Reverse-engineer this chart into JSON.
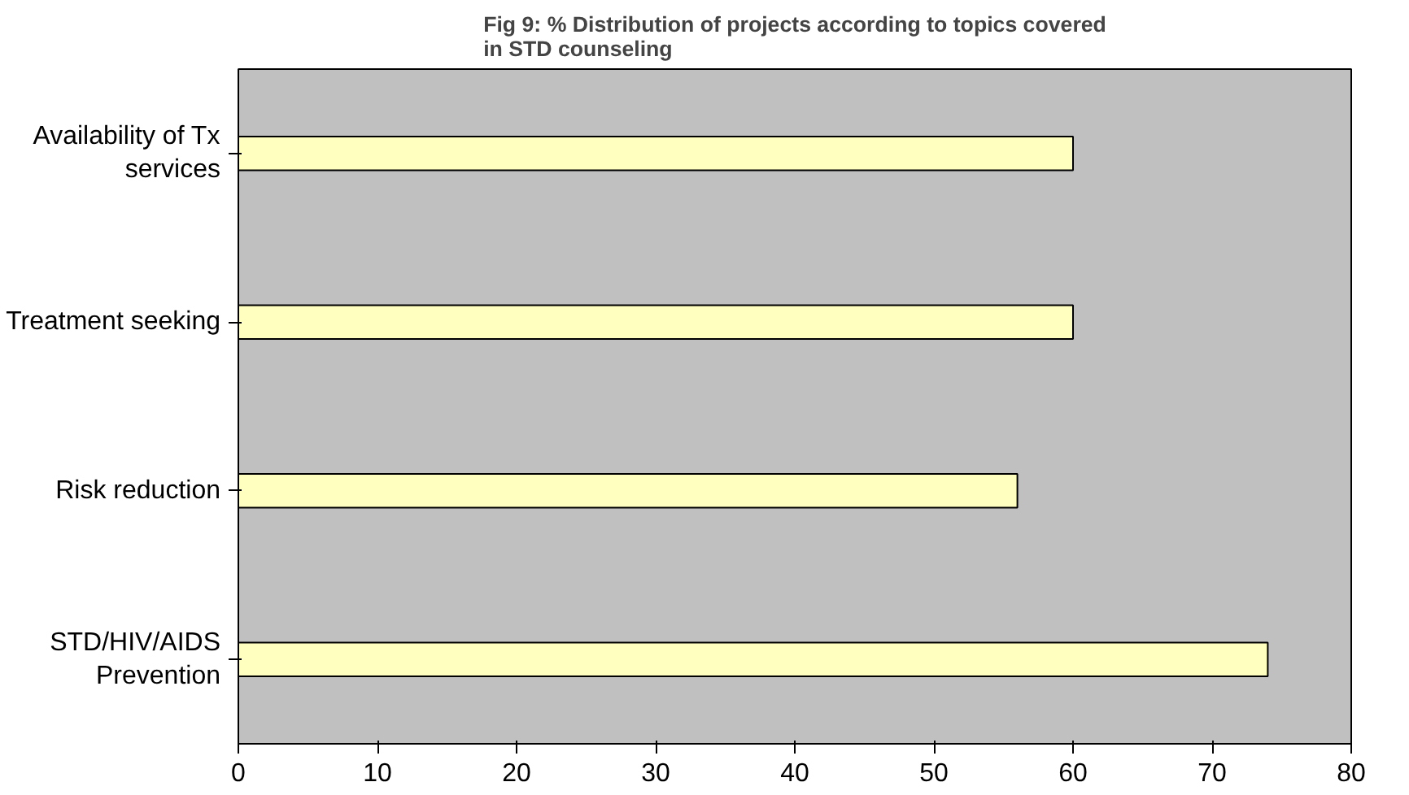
{
  "chart_data": {
    "type": "bar",
    "orientation": "horizontal",
    "title": "Fig 9: % Distribution of projects according to topics covered in STD counseling",
    "categories": [
      "Availability of Tx services",
      "Treatment seeking",
      "Risk reduction",
      "STD/HIV/AIDS Prevention"
    ],
    "values": [
      60,
      60,
      56,
      74
    ],
    "color": "#ffffc0",
    "xlim": [
      0,
      80
    ],
    "xticks": [
      0,
      10,
      20,
      30,
      40,
      50,
      60,
      70,
      80
    ],
    "grid": false
  }
}
